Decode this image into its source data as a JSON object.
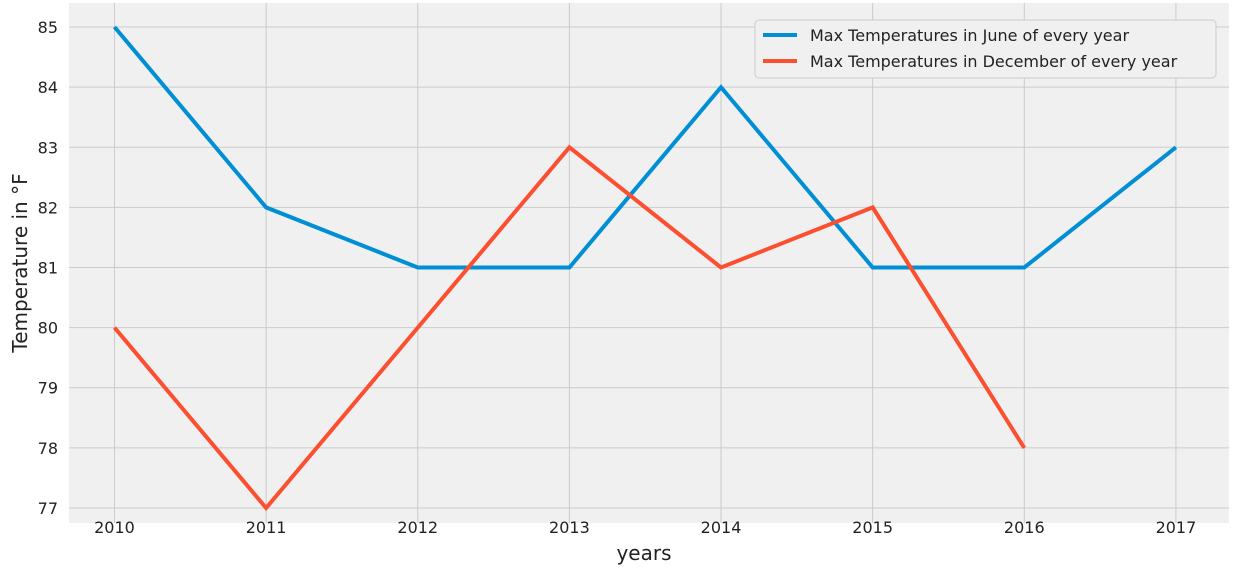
{
  "chart_data": {
    "type": "line",
    "title": "",
    "xlabel": "years",
    "ylabel": "Temperature in °F",
    "x": [
      2010,
      2011,
      2012,
      2013,
      2014,
      2015,
      2016,
      2017
    ],
    "xlim": [
      2009.7,
      2017.35
    ],
    "ylim": [
      76.75,
      85.4
    ],
    "x_ticks": [
      "2010",
      "2011",
      "2012",
      "2013",
      "2014",
      "2015",
      "2016",
      "2017"
    ],
    "y_ticks": [
      "77",
      "78",
      "79",
      "80",
      "81",
      "82",
      "83",
      "84",
      "85"
    ],
    "grid": true,
    "legend_position": "top-right",
    "series": [
      {
        "name": "Max Temperatures in June of every year",
        "color": "#008fd5",
        "x": [
          2010,
          2011,
          2012,
          2013,
          2014,
          2015,
          2016,
          2017
        ],
        "values": [
          85,
          82,
          81,
          81,
          84,
          81,
          81,
          83
        ]
      },
      {
        "name": "Max Temperatures in December of every year",
        "color": "#fc4f30",
        "x": [
          2010,
          2011,
          2012,
          2013,
          2014,
          2015,
          2016
        ],
        "values": [
          80,
          77,
          80,
          83,
          81,
          82,
          78
        ]
      }
    ]
  },
  "colors": {
    "plot_background": "#f0f0f0",
    "grid": "#cbcbcb",
    "text": "#222222"
  }
}
